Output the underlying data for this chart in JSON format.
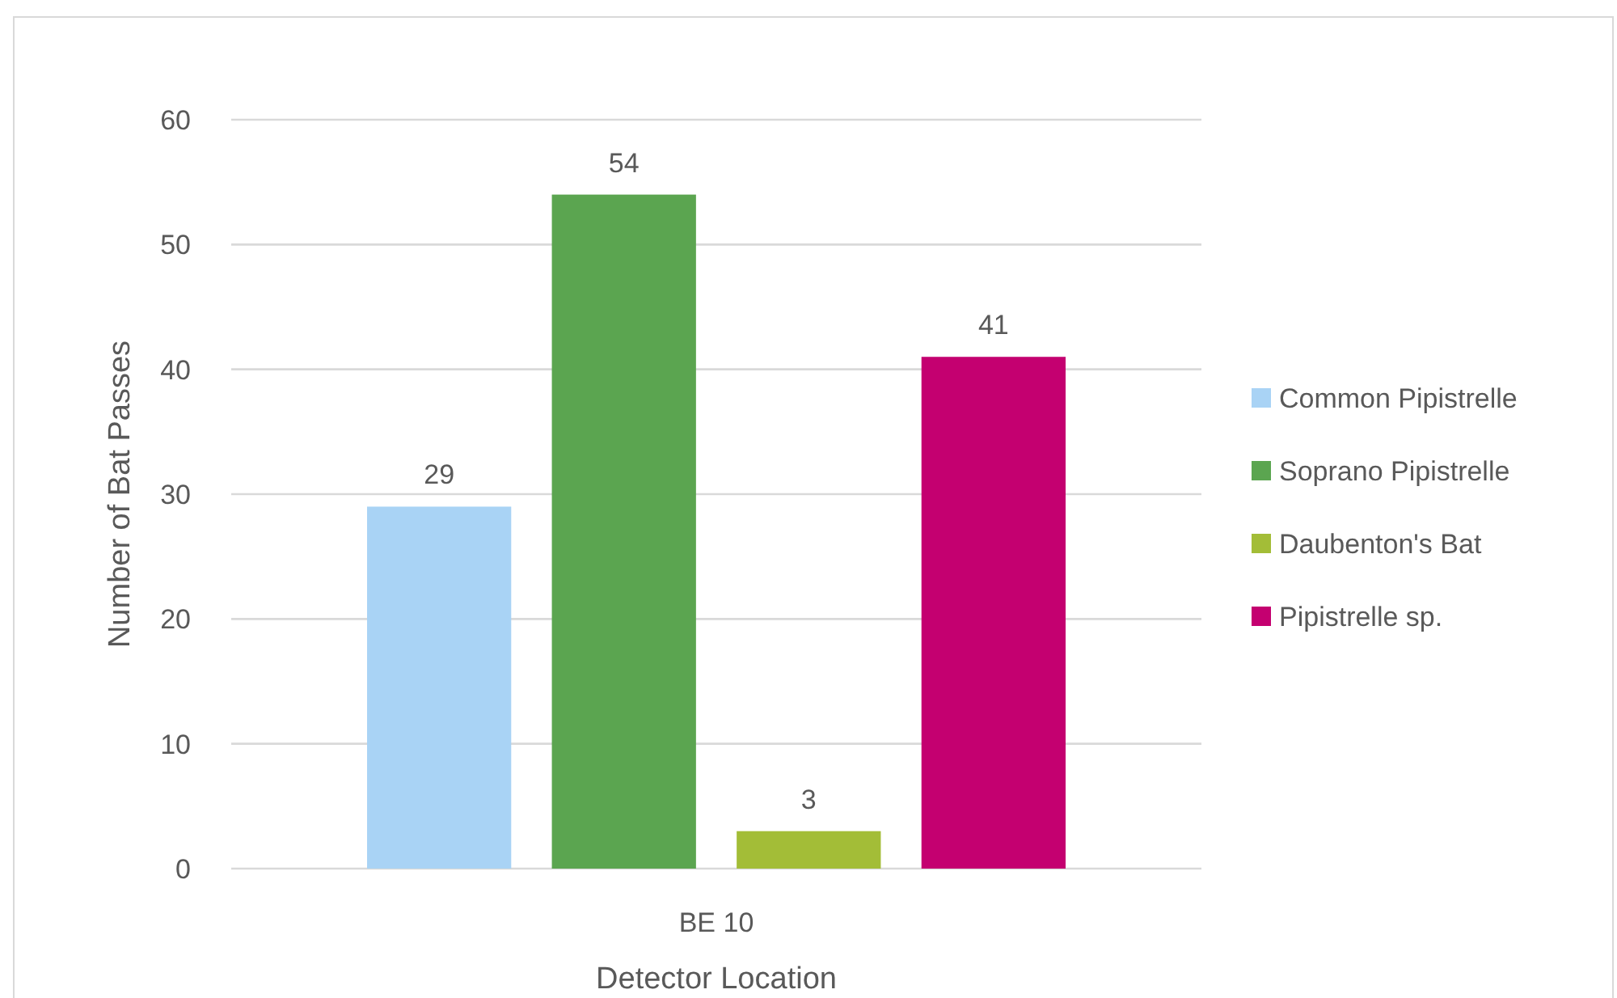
{
  "chart_data": {
    "type": "bar",
    "xlabel": "Detector Location",
    "ylabel": "Number of Bat Passes",
    "categories": [
      "BE 10"
    ],
    "series": [
      {
        "name": "Common Pipistrelle",
        "color": "#a9d3f5",
        "values": [
          29
        ]
      },
      {
        "name": "Soprano Pipistrelle",
        "color": "#5ba550",
        "values": [
          54
        ]
      },
      {
        "name": "Daubenton's Bat",
        "color": "#a3bd37",
        "values": [
          3
        ]
      },
      {
        "name": "Pipistrelle sp.",
        "color": "#c40070",
        "values": [
          41
        ]
      }
    ],
    "ylim": [
      0,
      60
    ],
    "yticks": [
      0,
      10,
      20,
      30,
      40,
      50,
      60
    ],
    "grid": "y",
    "legend": "right",
    "data_labels": true
  }
}
